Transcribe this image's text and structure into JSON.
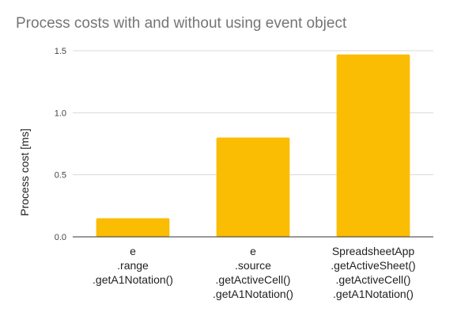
{
  "chart_data": {
    "type": "bar",
    "title": "Process costs with and without using event object",
    "xlabel": "",
    "ylabel": "Process cost [ms]",
    "ylim": [
      0,
      1.5
    ],
    "yticks": [
      "0.0",
      "0.5",
      "1.0",
      "1.5"
    ],
    "ytick_values": [
      0,
      0.5,
      1.0,
      1.5
    ],
    "grid": true,
    "legend": "none",
    "bar_color": "#fbbc04",
    "categories": [
      [
        "e",
        ".range",
        ".getA1Notation()"
      ],
      [
        "e",
        ".source",
        ".getActiveCell()",
        ".getA1Notation()"
      ],
      [
        "SpreadsheetApp",
        ".getActiveSheet()",
        ".getActiveCell()",
        ".getA1Notation()"
      ]
    ],
    "values": [
      0.15,
      0.8,
      1.47
    ]
  }
}
